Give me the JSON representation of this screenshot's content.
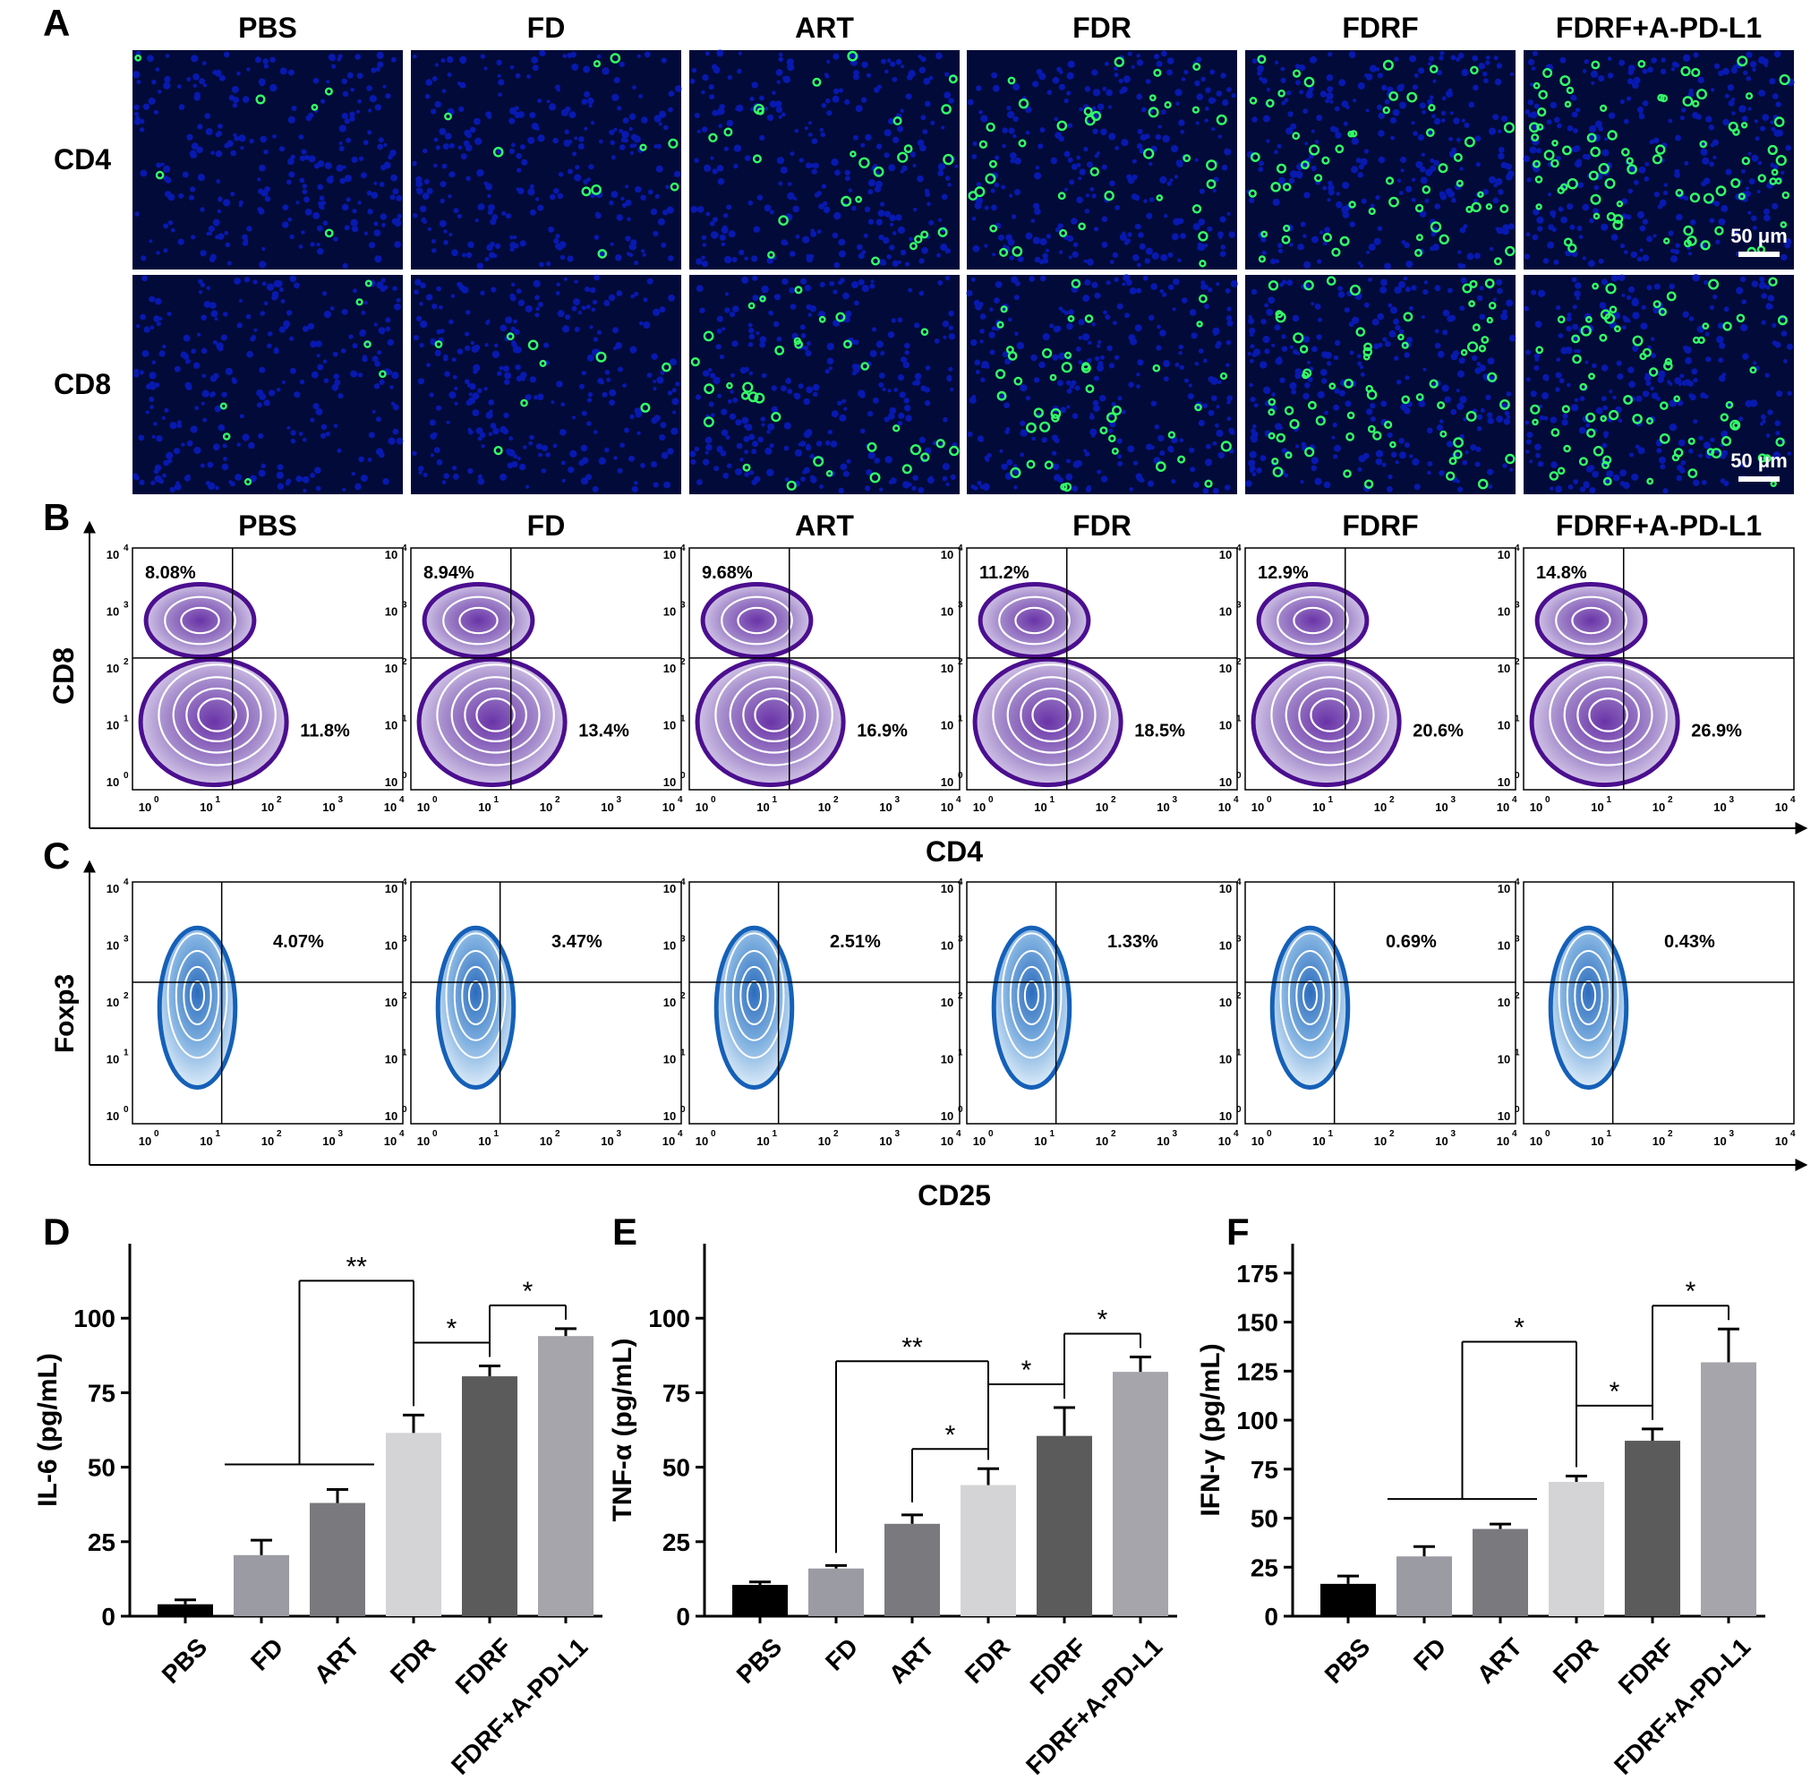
{
  "panel_letters": {
    "A": "A",
    "B": "B",
    "C": "C",
    "D": "D",
    "E": "E",
    "F": "F"
  },
  "groups": [
    "PBS",
    "FD",
    "ART",
    "FDR",
    "FDRF",
    "FDRF+A-PD-L1"
  ],
  "panel_a": {
    "row_labels": [
      "CD4",
      "CD8"
    ],
    "scale_bar_label": "50 μm",
    "stain_colors": {
      "nuclei": "#0a1fd6",
      "marker": "#33ff66"
    },
    "relative_marker_density": {
      "CD4": [
        0.02,
        0.06,
        0.22,
        0.35,
        0.55,
        0.8
      ],
      "CD8": [
        0.03,
        0.05,
        0.3,
        0.4,
        0.65,
        0.7
      ]
    }
  },
  "panel_b": {
    "y_axis_label": "CD8",
    "x_axis_label": "CD4",
    "tick_labels": [
      "10",
      "10",
      "10",
      "10",
      "10"
    ],
    "tick_exponents": [
      "0",
      "1",
      "2",
      "3",
      "4"
    ],
    "upper_left_percentages": [
      "8.08%",
      "8.94%",
      "9.68%",
      "11.2%",
      "12.9%",
      "14.8%"
    ],
    "lower_right_percentages": [
      "11.8%",
      "13.4%",
      "16.9%",
      "18.5%",
      "20.6%",
      "26.9%"
    ],
    "contour_color": "#4b0f8f"
  },
  "panel_c": {
    "y_axis_label": "Foxp3",
    "x_axis_label": "CD25",
    "tick_labels": [
      "10",
      "10",
      "10",
      "10",
      "10"
    ],
    "tick_exponents": [
      "0",
      "1",
      "2",
      "3",
      "4"
    ],
    "upper_right_percentages": [
      "4.07%",
      "3.47%",
      "2.51%",
      "1.33%",
      "0.69%",
      "0.43%"
    ],
    "contour_color": "#1560b8"
  },
  "bar_colors": [
    "#000000",
    "#9b9ba3",
    "#7a7a7e",
    "#d4d4d6",
    "#5b5b5b",
    "#a5a5ab"
  ],
  "chart_data": [
    {
      "type": "bar",
      "panel": "D",
      "categories": [
        "PBS",
        "FD",
        "ART",
        "FDR",
        "FDRF",
        "FDRF+A-PD-L1"
      ],
      "values": [
        4,
        20.5,
        38,
        61.5,
        80.5,
        94
      ],
      "errors": [
        1.5,
        5,
        4.5,
        6,
        3.5,
        2.5
      ],
      "ylabel": "IL-6 (pg/mL)",
      "ylim": [
        0,
        125
      ],
      "yticks": [
        0,
        25,
        50,
        75,
        100
      ],
      "ytick_labels": [
        "0",
        "25",
        "50",
        "75",
        "100"
      ],
      "significance": [
        {
          "from": [
            1,
            2
          ],
          "to": 3,
          "label": "**"
        },
        {
          "from": [
            3
          ],
          "to": 4,
          "label": "*"
        },
        {
          "from": [
            4
          ],
          "to": 5,
          "label": "*"
        }
      ]
    },
    {
      "type": "bar",
      "panel": "E",
      "categories": [
        "PBS",
        "FD",
        "ART",
        "FDR",
        "FDRF",
        "FDRF+A-PD-L1"
      ],
      "values": [
        10.5,
        16,
        31,
        44,
        60.5,
        82
      ],
      "errors": [
        1,
        1,
        3,
        5.5,
        9.5,
        5
      ],
      "ylabel": "TNF-α (pg/mL)",
      "ylim": [
        0,
        125
      ],
      "yticks": [
        0,
        25,
        50,
        75,
        100
      ],
      "ytick_labels": [
        "0",
        "25",
        "50",
        "75",
        "100"
      ],
      "significance": [
        {
          "from": [
            1
          ],
          "to": 3,
          "label": "**"
        },
        {
          "from": [
            2
          ],
          "to": 3,
          "label": "*"
        },
        {
          "from": [
            3
          ],
          "to": 4,
          "label": "*"
        },
        {
          "from": [
            4
          ],
          "to": 5,
          "label": "*"
        }
      ]
    },
    {
      "type": "bar",
      "panel": "F",
      "categories": [
        "PBS",
        "FD",
        "ART",
        "FDR",
        "FDRF",
        "FDRF+A-PD-L1"
      ],
      "values": [
        16.5,
        30.5,
        44.5,
        68.5,
        89.5,
        129.5
      ],
      "errors": [
        4,
        5,
        2.5,
        3,
        6,
        17
      ],
      "ylabel": "IFN-γ (pg/mL)",
      "ylim": [
        0,
        190
      ],
      "yticks": [
        0,
        25,
        50,
        75,
        100,
        125,
        150,
        175
      ],
      "ytick_labels": [
        "0",
        "25",
        "50",
        "75",
        "100",
        "125",
        "150",
        "175"
      ],
      "significance": [
        {
          "from": [
            1,
            2
          ],
          "to": 3,
          "label": "*"
        },
        {
          "from": [
            3
          ],
          "to": 4,
          "label": "*"
        },
        {
          "from": [
            4
          ],
          "to": 5,
          "label": "*"
        }
      ]
    }
  ]
}
